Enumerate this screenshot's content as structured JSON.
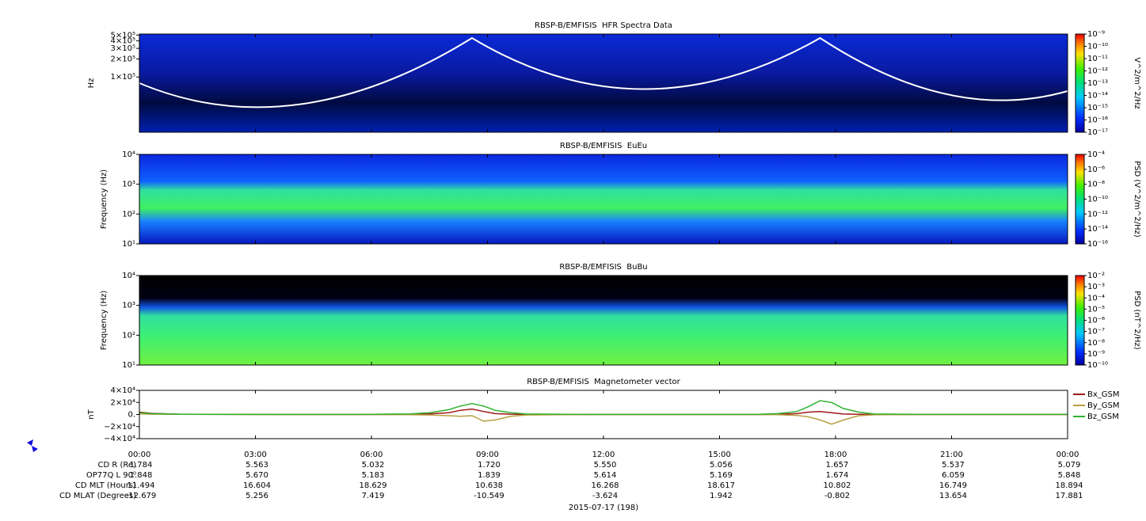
{
  "x_axis": {
    "xlim": [
      0,
      24
    ],
    "xticks": [
      {
        "value": 0,
        "label": "00:00"
      },
      {
        "value": 3,
        "label": "03:00"
      },
      {
        "value": 6,
        "label": "06:00"
      },
      {
        "value": 9,
        "label": "09:00"
      },
      {
        "value": 12,
        "label": "12:00"
      },
      {
        "value": 15,
        "label": "15:00"
      },
      {
        "value": 18,
        "label": "18:00"
      },
      {
        "value": 21,
        "label": "21:00"
      },
      {
        "value": 24,
        "label": "00:00"
      }
    ]
  },
  "chart_data": [
    {
      "type": "spectrogram",
      "title": "RBSP-B/EMFISIS  HFR Spectra Data",
      "y_label": "Hz",
      "log": true,
      "ylim": [
        12000,
        520000
      ],
      "yticks": [
        {
          "value": 500000,
          "label": "5×10⁵"
        },
        {
          "value": 400000,
          "label": "4×10⁵"
        },
        {
          "value": 300000,
          "label": "3×10⁵"
        },
        {
          "value": 200000,
          "label": "2×10⁵"
        },
        {
          "value": 100000,
          "label": "1×10⁵"
        }
      ],
      "colorbar": {
        "label": "V^2/m^2/Hz",
        "lim": [
          1e-17,
          1e-09
        ],
        "ticks": [
          {
            "value": 1e-09,
            "label": "10⁻⁹"
          },
          {
            "value": 1e-10,
            "label": "10⁻¹⁰"
          },
          {
            "value": 1e-11,
            "label": "10⁻¹¹"
          },
          {
            "value": 1e-12,
            "label": "10⁻¹²"
          },
          {
            "value": 1e-13,
            "label": "10⁻¹³"
          },
          {
            "value": 1e-14,
            "label": "10⁻¹⁴"
          },
          {
            "value": 1e-15,
            "label": "10⁻¹⁵"
          },
          {
            "value": 1e-16,
            "label": "10⁻¹⁶"
          },
          {
            "value": 1e-17,
            "label": "10⁻¹⁷"
          }
        ]
      }
    },
    {
      "type": "spectrogram",
      "title": "RBSP-B/EMFISIS  EuEu",
      "y_label": "Frequency (Hz)",
      "log": true,
      "ylim": [
        10,
        10000
      ],
      "yticks": [
        {
          "value": 10000,
          "label": "10⁴"
        },
        {
          "value": 1000,
          "label": "10³"
        },
        {
          "value": 100,
          "label": "10²"
        },
        {
          "value": 10,
          "label": "10¹"
        }
      ],
      "colorbar": {
        "label": "PSD (V^2/m^2/Hz)",
        "lim": [
          1e-16,
          0.0001
        ],
        "ticks": [
          {
            "value": 0.0001,
            "label": "10⁻⁴"
          },
          {
            "value": 1e-06,
            "label": "10⁻⁶"
          },
          {
            "value": 1e-08,
            "label": "10⁻⁸"
          },
          {
            "value": 1e-10,
            "label": "10⁻¹⁰"
          },
          {
            "value": 1e-12,
            "label": "10⁻¹²"
          },
          {
            "value": 1e-14,
            "label": "10⁻¹⁴"
          },
          {
            "value": 1e-16,
            "label": "10⁻¹⁶"
          }
        ]
      }
    },
    {
      "type": "spectrogram",
      "title": "RBSP-B/EMFISIS  BuBu",
      "y_label": "Frequency (Hz)",
      "log": true,
      "ylim": [
        10,
        10000
      ],
      "yticks": [
        {
          "value": 10000,
          "label": "10⁴"
        },
        {
          "value": 1000,
          "label": "10³"
        },
        {
          "value": 100,
          "label": "10²"
        },
        {
          "value": 10,
          "label": "10¹"
        }
      ],
      "colorbar": {
        "label": "PSD (nT^2/Hz)",
        "lim": [
          1e-10,
          0.01
        ],
        "ticks": [
          {
            "value": 0.01,
            "label": "10⁻²"
          },
          {
            "value": 0.001,
            "label": "10⁻³"
          },
          {
            "value": 0.0001,
            "label": "10⁻⁴"
          },
          {
            "value": 1e-05,
            "label": "10⁻⁵"
          },
          {
            "value": 1e-06,
            "label": "10⁻⁶"
          },
          {
            "value": 1e-07,
            "label": "10⁻⁷"
          },
          {
            "value": 1e-08,
            "label": "10⁻⁸"
          },
          {
            "value": 1e-09,
            "label": "10⁻⁹"
          },
          {
            "value": 1e-10,
            "label": "10⁻¹⁰"
          }
        ]
      }
    },
    {
      "type": "line",
      "title": "RBSP-B/EMFISIS  Magnetometer vector",
      "y_label": "nT",
      "log": false,
      "ylim": [
        -40000,
        40000
      ],
      "yticks": [
        {
          "value": 40000,
          "label": "4×10⁴"
        },
        {
          "value": 20000,
          "label": "2×10⁴"
        },
        {
          "value": 0,
          "label": "0."
        },
        {
          "value": -20000,
          "label": "−2×10⁴"
        },
        {
          "value": -40000,
          "label": "−4×10⁴"
        }
      ],
      "x": [
        0,
        0.3,
        1,
        2,
        3,
        4,
        5,
        6,
        7,
        7.5,
        8,
        8.3,
        8.6,
        8.9,
        9.2,
        9.6,
        10,
        11,
        12,
        13,
        14,
        15,
        16,
        16.5,
        17,
        17.3,
        17.6,
        17.9,
        18.2,
        18.6,
        19,
        20,
        21,
        22,
        23,
        24
      ],
      "series": [
        {
          "name": "Bx_GSM",
          "color": "#a01818",
          "values": [
            4000,
            2000,
            500,
            200,
            100,
            0,
            0,
            0,
            300,
            1000,
            3000,
            7000,
            9000,
            5000,
            1500,
            500,
            200,
            0,
            0,
            0,
            0,
            0,
            0,
            200,
            1500,
            4000,
            5000,
            3000,
            800,
            300,
            100,
            0,
            0,
            0,
            0,
            0
          ]
        },
        {
          "name": "By_GSM",
          "color": "#b8a040",
          "values": [
            1000,
            500,
            200,
            0,
            0,
            0,
            0,
            0,
            -300,
            -800,
            -2000,
            -3000,
            -2000,
            -11000,
            -9000,
            -3000,
            -800,
            -200,
            0,
            0,
            0,
            0,
            0,
            -300,
            -1500,
            -4000,
            -9000,
            -16000,
            -9000,
            -2000,
            -500,
            -100,
            0,
            0,
            0,
            0
          ]
        },
        {
          "name": "Bz_GSM",
          "color": "#30b030",
          "values": [
            3000,
            1500,
            500,
            200,
            100,
            100,
            100,
            200,
            1000,
            3000,
            8000,
            14000,
            18000,
            14000,
            7000,
            3000,
            1000,
            300,
            100,
            100,
            100,
            100,
            200,
            1500,
            5000,
            13000,
            23000,
            20000,
            10000,
            4000,
            1000,
            300,
            200,
            200,
            300,
            400
          ]
        }
      ]
    }
  ],
  "ephemeris": [
    {
      "label": "CD R (Re)",
      "values": [
        "1.784",
        "5.563",
        "5.032",
        "1.720",
        "5.550",
        "5.056",
        "1.657",
        "5.537",
        "5.079"
      ]
    },
    {
      "label": "OP77Q L 90⁰",
      "values": [
        "1.848",
        "5.670",
        "5.183",
        "1.839",
        "5.614",
        "5.169",
        "1.674",
        "6.059",
        "5.848"
      ]
    },
    {
      "label": "CD MLT (Hours)",
      "values": [
        "11.494",
        "16.604",
        "18.629",
        "10.638",
        "16.268",
        "18.617",
        "10.802",
        "16.749",
        "18.894"
      ]
    },
    {
      "label": "CD MLAT (Degrees)",
      "values": [
        "-12.679",
        "5.256",
        "7.419",
        "-10.549",
        "-3.624",
        "1.942",
        "-0.802",
        "13.654",
        "17.881"
      ]
    }
  ],
  "date_label": "2015-07-17 (198)"
}
